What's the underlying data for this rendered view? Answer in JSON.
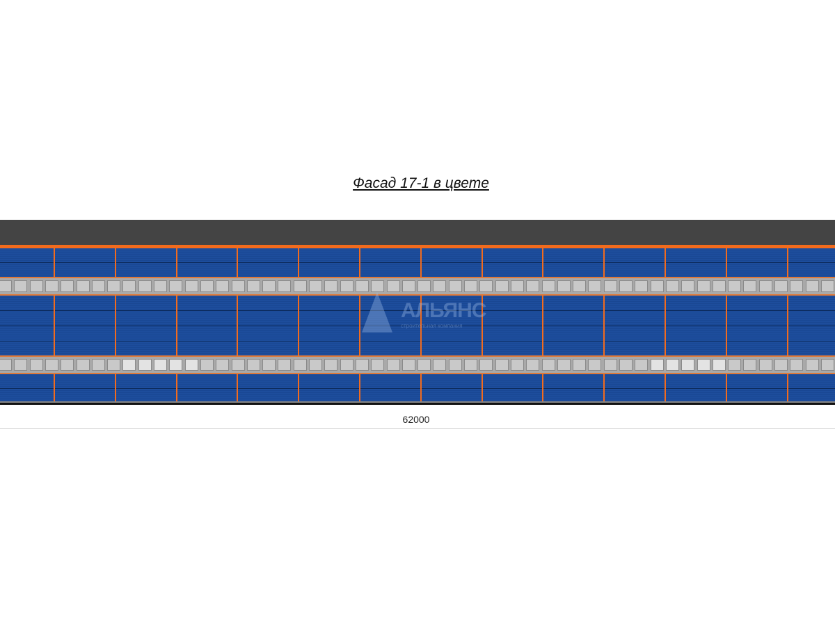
{
  "title": "Фасад 17-1 в цвете",
  "dimension": "62000",
  "watermark": {
    "name": "АЛЬЯНС",
    "subtitle": "строительная компания"
  },
  "colors": {
    "roof": "#444444",
    "trim": "#f26b1d",
    "cladding": "#1d4d9c",
    "windows": "#c9c9c9"
  }
}
